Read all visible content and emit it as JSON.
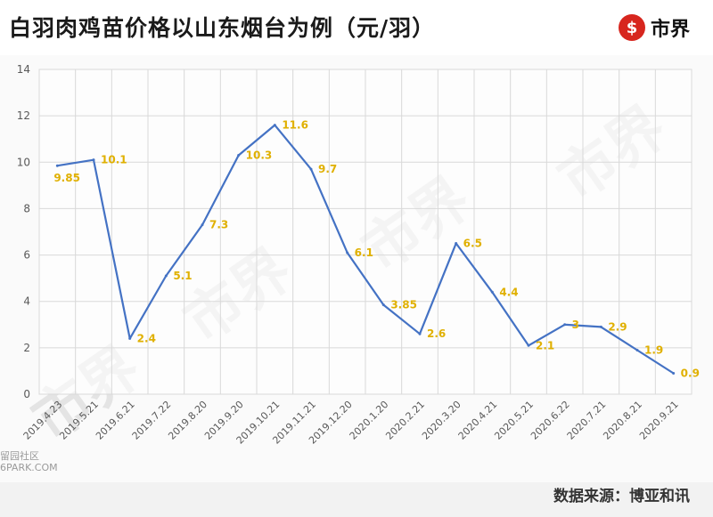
{
  "header": {
    "title": "白羽肉鸡苗价格以山东烟台为例（元/羽）",
    "logo_mark": "$",
    "logo_text": "市界"
  },
  "footer": {
    "source": "数据来源：博亚和讯",
    "corner_watermark_line1": "留园社区",
    "corner_watermark_line2": "6PARK.COM"
  },
  "watermarks": [
    "市界",
    "市界",
    "市界",
    "市界"
  ],
  "colors": {
    "line": "#4472c4",
    "data_label": "#e0b000",
    "logo": "#d7261e",
    "grid": "#d9d9d9"
  },
  "chart_data": {
    "type": "line",
    "title": "",
    "xlabel": "",
    "ylabel": "",
    "ylim": [
      0,
      14
    ],
    "yticks": [
      0,
      2,
      4,
      6,
      8,
      10,
      12,
      14
    ],
    "grid": true,
    "categories": [
      "2019.4.23",
      "2019.5.21",
      "2019.6.21",
      "2019.7.22",
      "2019.8.20",
      "2019.9.20",
      "2019.10.21",
      "2019.11.21",
      "2019.12.20",
      "2020.1.20",
      "2020.2.21",
      "2020.3.20",
      "2020.4.21",
      "2020.5.21",
      "2020.6.22",
      "2020.7.21",
      "2020.8.21",
      "2020.9.21"
    ],
    "values": [
      9.85,
      10.1,
      2.4,
      5.1,
      7.3,
      10.3,
      11.6,
      9.7,
      6.1,
      3.85,
      2.6,
      6.5,
      4.4,
      2.1,
      3,
      2.9,
      1.9,
      0.9
    ],
    "labels": [
      "9.85",
      "10.1",
      "2.4",
      "5.1",
      "7.3",
      "10.3",
      "11.6",
      "9.7",
      "6.1",
      "3.85",
      "2.6",
      "6.5",
      "4.4",
      "2.1",
      "3",
      "2.9",
      "1.9",
      "0.9"
    ]
  }
}
